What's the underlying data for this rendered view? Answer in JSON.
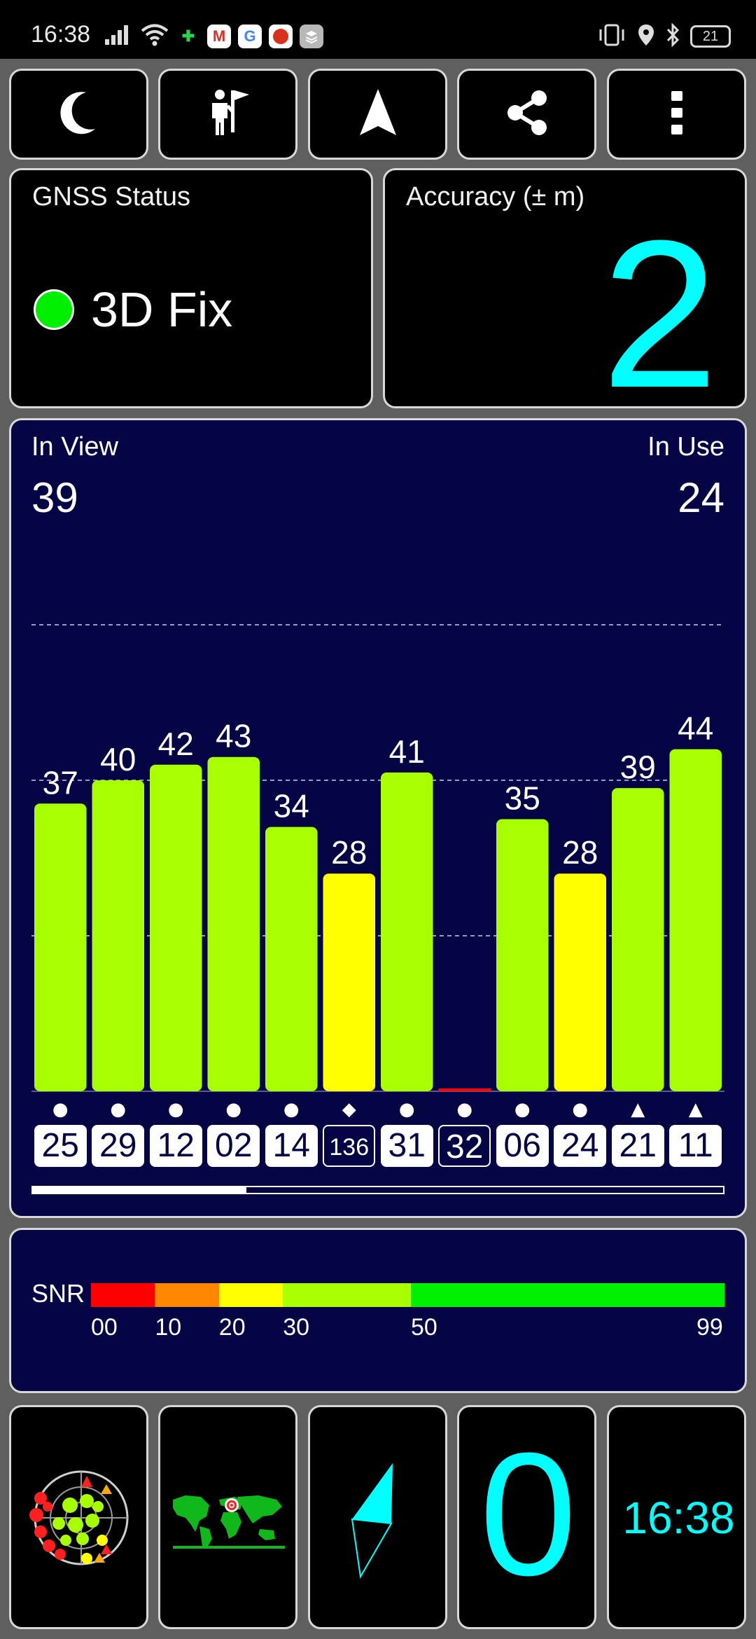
{
  "status_bar": {
    "time": "16:38",
    "battery": "21",
    "left_icons": [
      "signal-icon",
      "wifi-icon",
      "puzzle-app-icon",
      "gmail-icon",
      "google-icon",
      "red-app-icon",
      "layers-app-icon"
    ],
    "right_icons": [
      "vibrate-icon",
      "location-icon",
      "bluetooth-icon",
      "battery-icon"
    ]
  },
  "toolbar": {
    "buttons": [
      "night-mode-moon-icon",
      "tracking-person-flag-icon",
      "navigation-arrow-icon",
      "share-icon",
      "more-vert-icon"
    ]
  },
  "gnss": {
    "label": "GNSS Status",
    "fix": "3D Fix",
    "fix_color": "#00ee00"
  },
  "accuracy": {
    "label": "Accuracy (± m)",
    "value": "2"
  },
  "satellites": {
    "in_view_label": "In View",
    "in_view": "39",
    "in_use_label": "In Use",
    "in_use": "24"
  },
  "chart_data": {
    "type": "bar",
    "categories": [
      "25",
      "29",
      "12",
      "02",
      "14",
      "136",
      "31",
      "32",
      "06",
      "24",
      "21",
      "11"
    ],
    "values": [
      37,
      40,
      42,
      43,
      34,
      28,
      41,
      0,
      35,
      28,
      39,
      44
    ],
    "value_labels": [
      "37",
      "40",
      "42",
      "43",
      "34",
      "28",
      "41",
      "",
      "35",
      "28",
      "39",
      "44"
    ],
    "symbols": [
      "●",
      "●",
      "●",
      "●",
      "●",
      "◆",
      "●",
      "●",
      "●",
      "●",
      "▲",
      "▲"
    ],
    "used": [
      true,
      true,
      true,
      true,
      true,
      false,
      true,
      false,
      true,
      true,
      true,
      true
    ],
    "ylim": [
      0,
      60
    ],
    "gridlines": [
      20,
      40,
      60
    ],
    "scroll_fraction": 0.31,
    "colors": {
      "high": "#a8ff00",
      "mid": "#ffff00",
      "low": "#ff0000"
    }
  },
  "snr_scale": {
    "label": "SNR",
    "ticks": [
      "00",
      "10",
      "20",
      "30",
      "50",
      "99"
    ],
    "segment_colors": [
      "#ff0000",
      "#ff8800",
      "#ffff00",
      "#a8ff00",
      "#00ee00"
    ]
  },
  "bottom": {
    "sky_plot": "sky-plot-icon",
    "world_map": "world-map-icon",
    "compass": "compass-icon",
    "speed": "0",
    "time": "16:38"
  }
}
